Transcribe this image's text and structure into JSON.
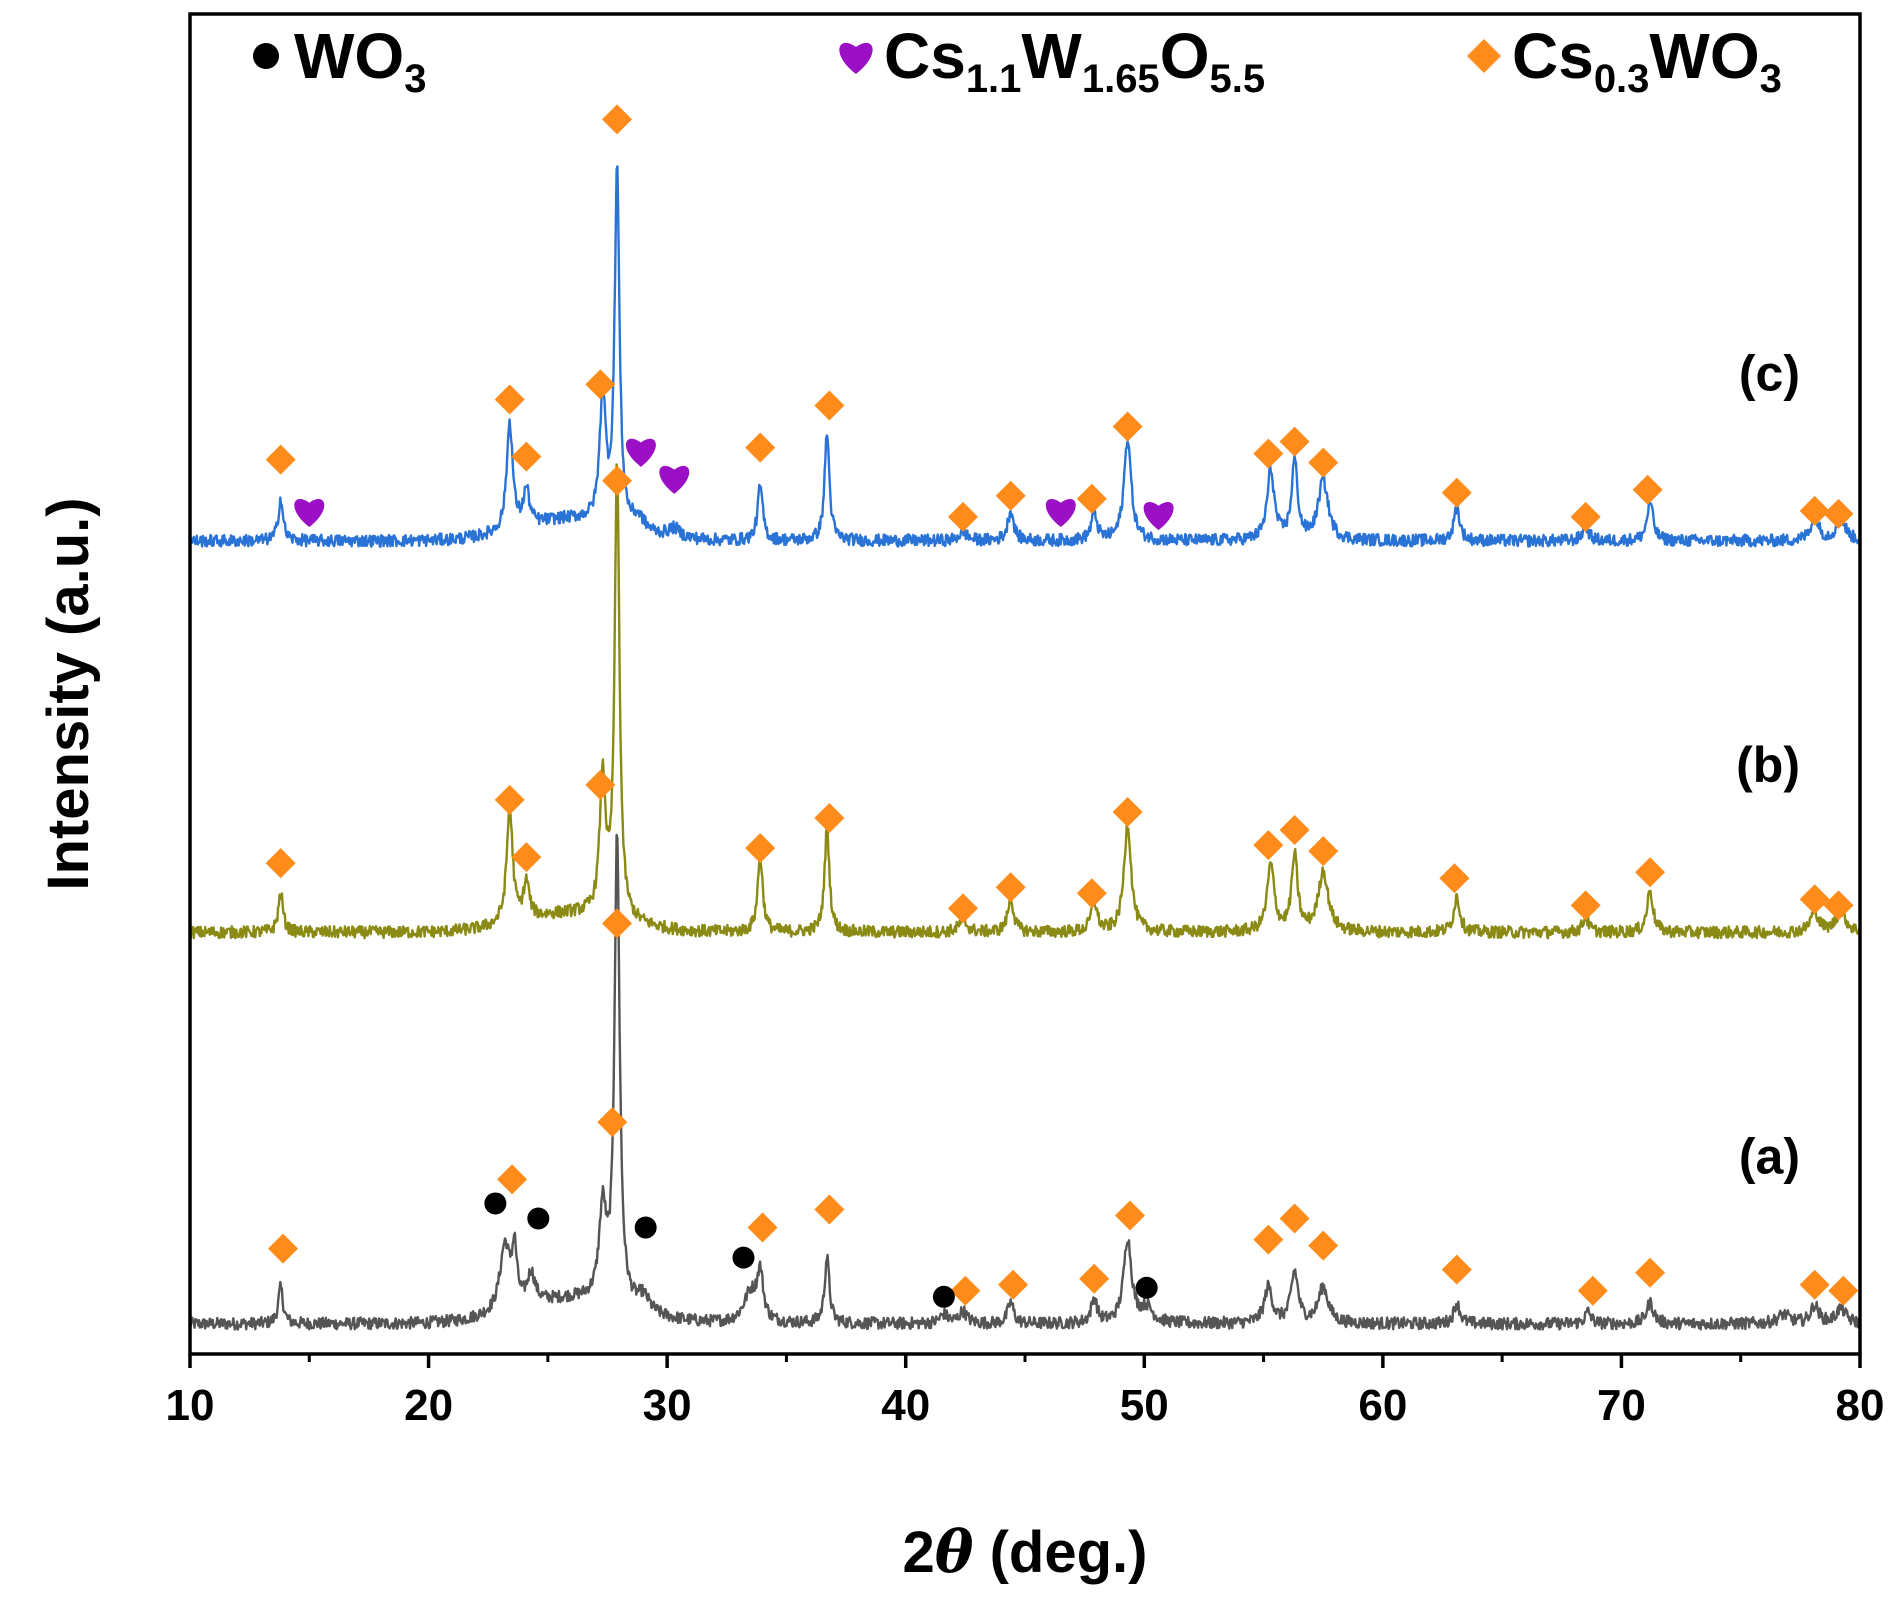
{
  "chart_data": {
    "type": "line",
    "title": "",
    "xlabel_prefix": "2",
    "xlabel_symbol": "θ",
    "xlabel_suffix": " (deg.)",
    "ylabel": "Intensity (a.u.)",
    "xlim": [
      10,
      80
    ],
    "xticks": [
      10,
      20,
      30,
      40,
      50,
      60,
      70,
      80
    ],
    "y_ticks_shown": false,
    "grid": false,
    "legend_position": "top",
    "legend": [
      {
        "marker": "circle",
        "color": "#000000",
        "base": "WO",
        "parts": [
          {
            "t": "3",
            "sub": true
          }
        ]
      },
      {
        "marker": "heart",
        "color": "#9b10c4",
        "base": "Cs",
        "parts": [
          {
            "t": "1.1",
            "sub": true
          },
          {
            "t": "W",
            "sub": false
          },
          {
            "t": "1.65",
            "sub": true
          },
          {
            "t": "O",
            "sub": false
          },
          {
            "t": "5.5",
            "sub": true
          }
        ]
      },
      {
        "marker": "diamond",
        "color": "#ff8c1a",
        "base": "Cs",
        "parts": [
          {
            "t": "0.3",
            "sub": true
          },
          {
            "t": "WO",
            "sub": false
          },
          {
            "t": "3",
            "sub": true
          }
        ]
      }
    ],
    "series": [
      {
        "name": "(a)",
        "color": "#555555",
        "baseline": 0.0,
        "rise_center": 26,
        "rise_width": 3.2,
        "rise_height": 0.08,
        "peaks": [
          [
            13.8,
            0.12,
            0.12
          ],
          [
            23.2,
            0.22,
            0.25
          ],
          [
            23.6,
            0.18,
            0.12
          ],
          [
            24.3,
            0.1,
            0.2
          ],
          [
            27.3,
            0.3,
            0.18
          ],
          [
            27.9,
            1.55,
            0.13
          ],
          [
            29,
            0.05,
            0.3
          ],
          [
            33.5,
            0.1,
            0.35
          ],
          [
            33.9,
            0.15,
            0.15
          ],
          [
            36.7,
            0.22,
            0.12
          ],
          [
            41.6,
            0.03,
            0.2
          ],
          [
            42.4,
            0.04,
            0.2
          ],
          [
            44.4,
            0.07,
            0.15
          ],
          [
            47.9,
            0.08,
            0.15
          ],
          [
            49.3,
            0.28,
            0.2
          ],
          [
            50.1,
            0.05,
            0.3
          ],
          [
            55.2,
            0.12,
            0.2
          ],
          [
            56.3,
            0.17,
            0.18
          ],
          [
            57.5,
            0.12,
            0.25
          ],
          [
            63.1,
            0.07,
            0.15
          ],
          [
            68.6,
            0.04,
            0.15
          ],
          [
            71.2,
            0.07,
            0.18
          ],
          [
            76.8,
            0.03,
            0.3
          ],
          [
            78.1,
            0.06,
            0.2
          ],
          [
            79.2,
            0.05,
            0.25
          ]
        ],
        "markers": [
          {
            "type": "diamond",
            "x": 13.9,
            "y": 0.3
          },
          {
            "type": "diamond",
            "x": 23.5,
            "y": 0.53
          },
          {
            "type": "diamond",
            "x": 27.7,
            "y": 0.72
          },
          {
            "type": "diamond",
            "x": 27.9,
            "y": 1.38
          },
          {
            "type": "diamond",
            "x": 34.0,
            "y": 0.37
          },
          {
            "type": "diamond",
            "x": 36.8,
            "y": 0.43
          },
          {
            "type": "diamond",
            "x": 42.5,
            "y": 0.16
          },
          {
            "type": "diamond",
            "x": 44.5,
            "y": 0.18
          },
          {
            "type": "diamond",
            "x": 47.9,
            "y": 0.2
          },
          {
            "type": "diamond",
            "x": 49.4,
            "y": 0.41
          },
          {
            "type": "diamond",
            "x": 55.2,
            "y": 0.33
          },
          {
            "type": "diamond",
            "x": 56.3,
            "y": 0.4
          },
          {
            "type": "diamond",
            "x": 57.5,
            "y": 0.31
          },
          {
            "type": "diamond",
            "x": 63.1,
            "y": 0.23
          },
          {
            "type": "diamond",
            "x": 68.8,
            "y": 0.16
          },
          {
            "type": "diamond",
            "x": 71.2,
            "y": 0.22
          },
          {
            "type": "diamond",
            "x": 78.1,
            "y": 0.18
          },
          {
            "type": "diamond",
            "x": 79.3,
            "y": 0.16
          },
          {
            "type": "circle",
            "x": 22.8,
            "y": 0.45
          },
          {
            "type": "circle",
            "x": 24.6,
            "y": 0.4
          },
          {
            "type": "circle",
            "x": 29.1,
            "y": 0.37
          },
          {
            "type": "circle",
            "x": 33.2,
            "y": 0.27
          },
          {
            "type": "circle",
            "x": 41.6,
            "y": 0.14
          },
          {
            "type": "circle",
            "x": 50.1,
            "y": 0.17
          }
        ]
      },
      {
        "name": "(b)",
        "color": "#8a8a14",
        "baseline": 1.3,
        "rise_center": 26,
        "rise_width": 3.0,
        "rise_height": 0.06,
        "peaks": [
          [
            13.8,
            0.13,
            0.12
          ],
          [
            23.4,
            0.38,
            0.15
          ],
          [
            24.1,
            0.12,
            0.15
          ],
          [
            27.3,
            0.45,
            0.15
          ],
          [
            27.9,
            1.5,
            0.12
          ],
          [
            33.9,
            0.25,
            0.13
          ],
          [
            36.7,
            0.35,
            0.12
          ],
          [
            42.4,
            0.04,
            0.2
          ],
          [
            44.4,
            0.11,
            0.15
          ],
          [
            47.9,
            0.1,
            0.15
          ],
          [
            49.3,
            0.36,
            0.18
          ],
          [
            55.3,
            0.22,
            0.18
          ],
          [
            56.3,
            0.25,
            0.15
          ],
          [
            57.5,
            0.2,
            0.25
          ],
          [
            63.1,
            0.12,
            0.15
          ],
          [
            68.5,
            0.05,
            0.15
          ],
          [
            71.2,
            0.14,
            0.15
          ],
          [
            78.1,
            0.07,
            0.2
          ],
          [
            79.2,
            0.07,
            0.25
          ]
        ],
        "markers": [
          {
            "type": "diamond",
            "x": 13.8,
            "y": 1.58
          },
          {
            "type": "diamond",
            "x": 23.4,
            "y": 1.79
          },
          {
            "type": "diamond",
            "x": 24.1,
            "y": 1.6
          },
          {
            "type": "diamond",
            "x": 27.2,
            "y": 1.84
          },
          {
            "type": "diamond",
            "x": 27.9,
            "y": 2.85
          },
          {
            "type": "diamond",
            "x": 33.9,
            "y": 1.63
          },
          {
            "type": "diamond",
            "x": 36.8,
            "y": 1.73
          },
          {
            "type": "diamond",
            "x": 42.4,
            "y": 1.43
          },
          {
            "type": "diamond",
            "x": 44.4,
            "y": 1.5
          },
          {
            "type": "diamond",
            "x": 47.8,
            "y": 1.48
          },
          {
            "type": "diamond",
            "x": 49.3,
            "y": 1.75
          },
          {
            "type": "diamond",
            "x": 55.2,
            "y": 1.64
          },
          {
            "type": "diamond",
            "x": 56.3,
            "y": 1.69
          },
          {
            "type": "diamond",
            "x": 57.5,
            "y": 1.62
          },
          {
            "type": "diamond",
            "x": 63.0,
            "y": 1.53
          },
          {
            "type": "diamond",
            "x": 68.5,
            "y": 1.44
          },
          {
            "type": "diamond",
            "x": 71.2,
            "y": 1.55
          },
          {
            "type": "diamond",
            "x": 78.1,
            "y": 1.46
          },
          {
            "type": "diamond",
            "x": 79.1,
            "y": 1.44
          }
        ]
      },
      {
        "name": "(c)",
        "color": "#2a73d6",
        "baseline": 2.6,
        "rise_center": 26,
        "rise_width": 3.0,
        "rise_height": 0.07,
        "peaks": [
          [
            13.8,
            0.14,
            0.12
          ],
          [
            23.4,
            0.36,
            0.15
          ],
          [
            24.1,
            0.12,
            0.15
          ],
          [
            27.3,
            0.42,
            0.15
          ],
          [
            27.9,
            1.18,
            0.12
          ],
          [
            28.8,
            0.04,
            0.3
          ],
          [
            30.3,
            0.03,
            0.3
          ],
          [
            33.9,
            0.18,
            0.13
          ],
          [
            36.7,
            0.36,
            0.12
          ],
          [
            42.4,
            0.03,
            0.2
          ],
          [
            44.4,
            0.1,
            0.15
          ],
          [
            47.9,
            0.09,
            0.15
          ],
          [
            49.3,
            0.34,
            0.18
          ],
          [
            55.3,
            0.23,
            0.18
          ],
          [
            56.3,
            0.26,
            0.15
          ],
          [
            57.5,
            0.2,
            0.25
          ],
          [
            63.1,
            0.11,
            0.15
          ],
          [
            68.5,
            0.05,
            0.15
          ],
          [
            71.2,
            0.13,
            0.15
          ],
          [
            78.1,
            0.08,
            0.2
          ],
          [
            79.2,
            0.07,
            0.25
          ]
        ],
        "markers": [
          {
            "type": "diamond",
            "x": 13.8,
            "y": 2.92
          },
          {
            "type": "diamond",
            "x": 23.4,
            "y": 3.12
          },
          {
            "type": "diamond",
            "x": 24.1,
            "y": 2.93
          },
          {
            "type": "diamond",
            "x": 27.2,
            "y": 3.17
          },
          {
            "type": "diamond",
            "x": 27.9,
            "y": 4.05
          },
          {
            "type": "diamond",
            "x": 33.9,
            "y": 2.96
          },
          {
            "type": "diamond",
            "x": 36.8,
            "y": 3.1
          },
          {
            "type": "diamond",
            "x": 42.4,
            "y": 2.73
          },
          {
            "type": "diamond",
            "x": 44.4,
            "y": 2.8
          },
          {
            "type": "diamond",
            "x": 47.8,
            "y": 2.79
          },
          {
            "type": "diamond",
            "x": 49.3,
            "y": 3.03
          },
          {
            "type": "diamond",
            "x": 55.2,
            "y": 2.94
          },
          {
            "type": "diamond",
            "x": 56.3,
            "y": 2.98
          },
          {
            "type": "diamond",
            "x": 57.5,
            "y": 2.91
          },
          {
            "type": "diamond",
            "x": 63.1,
            "y": 2.81
          },
          {
            "type": "diamond",
            "x": 68.5,
            "y": 2.73
          },
          {
            "type": "diamond",
            "x": 71.1,
            "y": 2.82
          },
          {
            "type": "diamond",
            "x": 78.1,
            "y": 2.75
          },
          {
            "type": "diamond",
            "x": 79.1,
            "y": 2.74
          },
          {
            "type": "heart",
            "x": 15.0,
            "y": 2.75
          },
          {
            "type": "heart",
            "x": 28.9,
            "y": 2.95
          },
          {
            "type": "heart",
            "x": 30.3,
            "y": 2.86
          },
          {
            "type": "heart",
            "x": 46.5,
            "y": 2.75
          },
          {
            "type": "heart",
            "x": 50.6,
            "y": 2.74
          }
        ]
      }
    ],
    "colors": {
      "diamond": "#ff8c1a",
      "heart": "#9b10c4",
      "circle": "#000000"
    }
  }
}
